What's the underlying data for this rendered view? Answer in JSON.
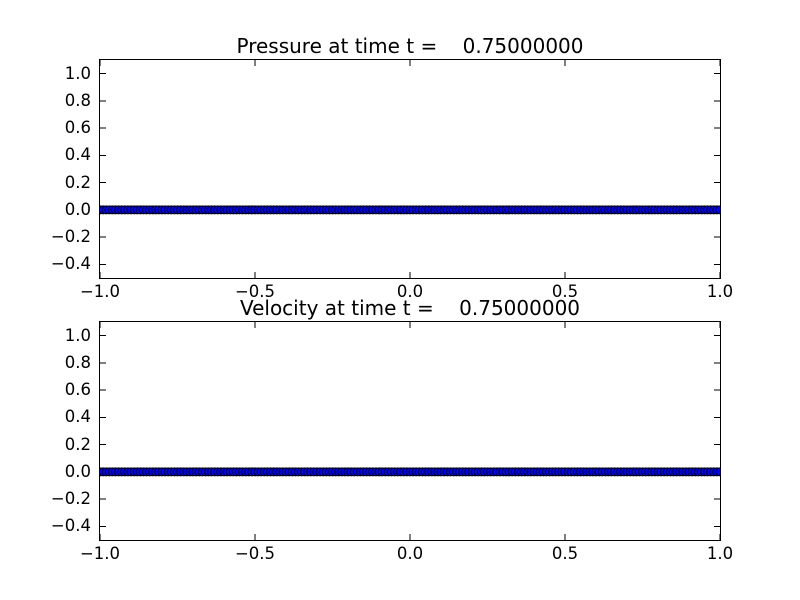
{
  "figure": {
    "background_color": "#ffffff",
    "plot_background_color": "#ffffff",
    "spine_color": "#000000",
    "tick_color": "#000000",
    "text_color": "#000000"
  },
  "chart_data": [
    {
      "id": "pressure",
      "type": "line",
      "title": "Pressure at time t =    0.75000000",
      "xlabel": "",
      "ylabel": "",
      "xlim": [
        -1.0,
        1.0
      ],
      "ylim": [
        -0.5,
        1.1
      ],
      "grid": false,
      "legend": "none",
      "x_tick_values": [
        -1.0,
        -0.5,
        0.0,
        0.5,
        1.0
      ],
      "x_tick_labels": [
        "−1.0",
        "−0.5",
        "0.0",
        "0.5",
        "1.0"
      ],
      "y_tick_values": [
        1.0,
        0.8,
        0.6,
        0.4,
        0.2,
        0.0,
        -0.2,
        -0.4
      ],
      "y_tick_labels": [
        "1.0",
        "0.8",
        "0.6",
        "0.4",
        "0.2",
        "0.0",
        "−0.2",
        "−0.4"
      ],
      "series": [
        {
          "name": "pressure",
          "description": "constant zero pressure sampled densely on [-1,1]",
          "x_start": -1.0,
          "x_end": 1.0,
          "num_points": 201,
          "y_constant": 0.0,
          "marker": "circle",
          "marker_radius_px": 4,
          "marker_face_color": "#0000ff",
          "marker_edge_color": "#000000",
          "line_color": "#0000ff"
        }
      ]
    },
    {
      "id": "velocity",
      "type": "line",
      "title": "Velocity at time t =    0.75000000",
      "xlabel": "",
      "ylabel": "",
      "xlim": [
        -1.0,
        1.0
      ],
      "ylim": [
        -0.5,
        1.1
      ],
      "grid": false,
      "legend": "none",
      "x_tick_values": [
        -1.0,
        -0.5,
        0.0,
        0.5,
        1.0
      ],
      "x_tick_labels": [
        "−1.0",
        "−0.5",
        "0.0",
        "0.5",
        "1.0"
      ],
      "y_tick_values": [
        1.0,
        0.8,
        0.6,
        0.4,
        0.2,
        0.0,
        -0.2,
        -0.4
      ],
      "y_tick_labels": [
        "1.0",
        "0.8",
        "0.6",
        "0.4",
        "0.2",
        "0.0",
        "−0.2",
        "−0.4"
      ],
      "series": [
        {
          "name": "velocity",
          "description": "constant zero velocity sampled densely on [-1,1]",
          "x_start": -1.0,
          "x_end": 1.0,
          "num_points": 201,
          "y_constant": 0.0,
          "marker": "circle",
          "marker_radius_px": 4,
          "marker_face_color": "#0000ff",
          "marker_edge_color": "#000000",
          "line_color": "#0000ff"
        }
      ]
    }
  ]
}
